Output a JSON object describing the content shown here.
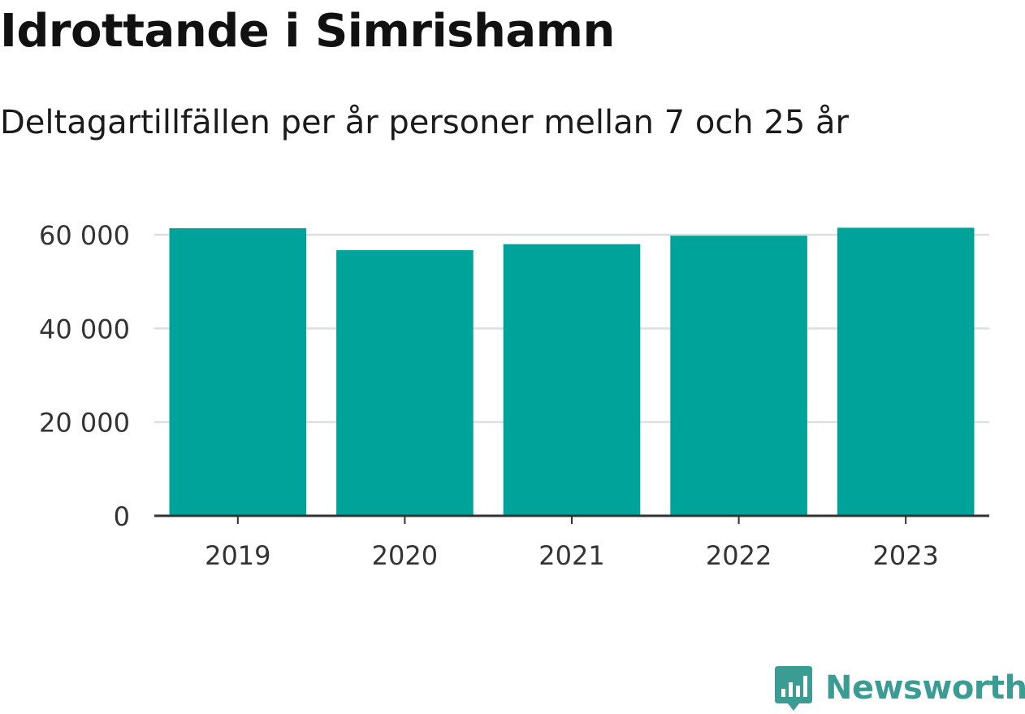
{
  "chart_data": {
    "type": "bar",
    "title": "Idrottande i Simrishamn",
    "subtitle": "Deltagartillfällen per år personer mellan 7 och 25 år",
    "categories": [
      "2019",
      "2020",
      "2021",
      "2022",
      "2023"
    ],
    "values": [
      61400,
      56700,
      58000,
      59800,
      61500
    ],
    "yticks": [
      0,
      20000,
      40000,
      60000
    ],
    "ytick_labels": [
      "0",
      "20 000",
      "40 000",
      "60 000"
    ],
    "ylim": [
      0,
      60000
    ],
    "xlabel": "",
    "ylabel": "",
    "grid": true,
    "bar_color": "#00a39a"
  },
  "brand": {
    "name": "Newsworthy",
    "icon": "newsworthy-logo-icon",
    "color": "#3a9c92"
  }
}
